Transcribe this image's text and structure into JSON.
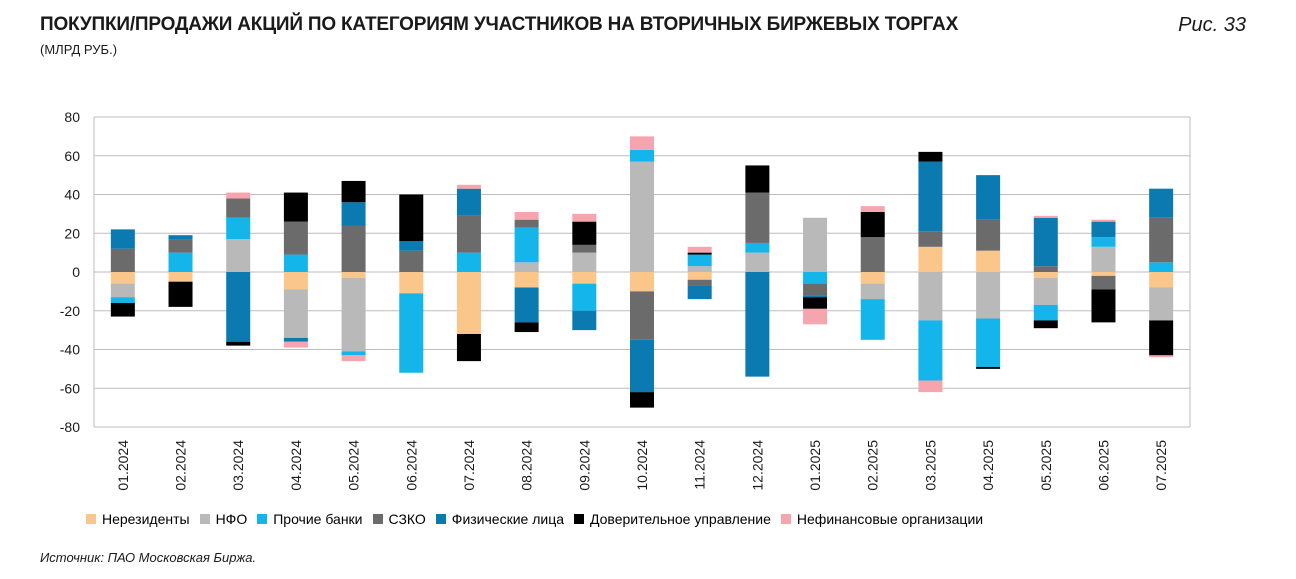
{
  "header": {
    "title": "ПОКУПКИ/ПРОДАЖИ АКЦИЙ ПО КАТЕГОРИЯМ УЧАСТНИКОВ НА ВТОРИЧНЫХ БИРЖЕВЫХ ТОРГАХ",
    "subtitle": "(МЛРД РУБ.)",
    "figure_label": "Рис. 33"
  },
  "footer": {
    "source": "Источник: ПАО Московская Биржа."
  },
  "chart_data": {
    "type": "bar",
    "stacked": true,
    "ylim": [
      -80,
      80
    ],
    "yticks": [
      80,
      60,
      40,
      20,
      0,
      -20,
      -40,
      -60,
      -80
    ],
    "grid": true,
    "legend_position": "bottom",
    "categories": [
      "01.2024",
      "02.2024",
      "03.2024",
      "04.2024",
      "05.2024",
      "06.2024",
      "07.2024",
      "08.2024",
      "09.2024",
      "10.2024",
      "11.2024",
      "12.2024",
      "01.2025",
      "02.2025",
      "03.2025",
      "04.2025",
      "05.2025",
      "06.2025",
      "07.2025"
    ],
    "series": [
      {
        "name": "Нерезиденты",
        "color": "#fbc689",
        "values": [
          -6,
          -5,
          0,
          -9,
          -3,
          -11,
          -32,
          -8,
          -6,
          -10,
          -4,
          0,
          0,
          -6,
          13,
          11,
          -3,
          -2,
          -8
        ]
      },
      {
        "name": "НФО",
        "color": "#b9b9b9",
        "values": [
          -7,
          0,
          17,
          -25,
          -38,
          0,
          0,
          5,
          10,
          57,
          3,
          10,
          28,
          -8,
          -25,
          -24,
          -14,
          13,
          -17
        ]
      },
      {
        "name": "Прочие банки",
        "color": "#13b5ea",
        "values": [
          -3,
          10,
          11,
          9,
          -2,
          -41,
          10,
          18,
          -14,
          6,
          6,
          5,
          -6,
          -21,
          -31,
          -25,
          -8,
          5,
          5
        ]
      },
      {
        "name": "СЗКО",
        "color": "#6b6b6b",
        "values": [
          12,
          7,
          10,
          17,
          24,
          11,
          19,
          4,
          4,
          -25,
          -3,
          26,
          -6,
          18,
          8,
          16,
          3,
          -7,
          23
        ]
      },
      {
        "name": "Физические лица",
        "color": "#0a7ab1",
        "values": [
          10,
          2,
          -36,
          -2,
          12,
          5,
          14,
          -18,
          -10,
          -27,
          -7,
          -54,
          -1,
          0,
          36,
          23,
          25,
          8,
          15
        ]
      },
      {
        "name": "Доверительное управление",
        "color": "#000000",
        "values": [
          -7,
          -13,
          -2,
          15,
          11,
          24,
          -14,
          -5,
          12,
          -8,
          1,
          14,
          -6,
          13,
          5,
          -1,
          -4,
          -17,
          -18
        ]
      },
      {
        "name": "Нефинансовые организации",
        "color": "#f6a5ae",
        "values": [
          0,
          0,
          3,
          -3,
          -3,
          0,
          2,
          4,
          4,
          7,
          3,
          0,
          -8,
          3,
          -6,
          0,
          1,
          1,
          -1
        ]
      }
    ]
  }
}
